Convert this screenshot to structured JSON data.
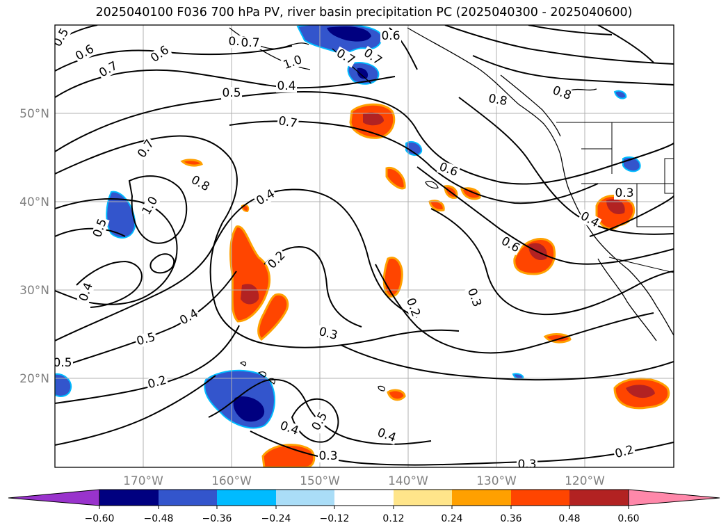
{
  "title": "2025040100 F036 700 hPa PV, river basin precipitation PC (2025040300 - 2025040600)",
  "map": {
    "lon_labels": [
      "170°W",
      "160°W",
      "150°W",
      "140°W",
      "130°W",
      "120°W"
    ],
    "lat_labels": [
      "50°N",
      "40°N",
      "30°N",
      "20°N"
    ],
    "axis_label_color": "#808080",
    "contour_labels": [
      {
        "text": "0.5"
      },
      {
        "text": "0.6"
      },
      {
        "text": "0.7"
      },
      {
        "text": "0.6"
      },
      {
        "text": "0.8"
      },
      {
        "text": "1.0"
      },
      {
        "text": "0.7"
      },
      {
        "text": "0.6"
      },
      {
        "text": "0.7"
      },
      {
        "text": "0.5"
      },
      {
        "text": "0.4"
      },
      {
        "text": "0.7"
      },
      {
        "text": "0.8"
      },
      {
        "text": "0.7"
      },
      {
        "text": "0.8"
      },
      {
        "text": "1.0"
      },
      {
        "text": "0.6"
      },
      {
        "text": "0.4"
      },
      {
        "text": "0.5"
      },
      {
        "text": "0.7"
      },
      {
        "text": "0.8"
      },
      {
        "text": "0.4"
      },
      {
        "text": "0.2"
      },
      {
        "text": "0.4"
      },
      {
        "text": "0.5"
      },
      {
        "text": "0.5"
      },
      {
        "text": "0.2"
      },
      {
        "text": "0.3"
      },
      {
        "text": "0.2"
      },
      {
        "text": "0.3"
      },
      {
        "text": "0.6"
      },
      {
        "text": "0.4"
      },
      {
        "text": "0.3"
      },
      {
        "text": "0.4"
      },
      {
        "text": "0.5"
      },
      {
        "text": "0.4"
      },
      {
        "text": "0.3"
      },
      {
        "text": "0.3"
      },
      {
        "text": "0.2"
      }
    ]
  },
  "colorbar": {
    "ticks": [
      "−0.60",
      "−0.48",
      "−0.36",
      "−0.24",
      "−0.12",
      "0.12",
      "0.24",
      "0.36",
      "0.48",
      "0.60"
    ],
    "colors": [
      "#9933cc",
      "#000080",
      "#3355cc",
      "#00bbff",
      "#aaddf7",
      "#ffffff",
      "#ffe58a",
      "#ffa000",
      "#ff4500",
      "#b22222",
      "#ff88aa"
    ]
  }
}
